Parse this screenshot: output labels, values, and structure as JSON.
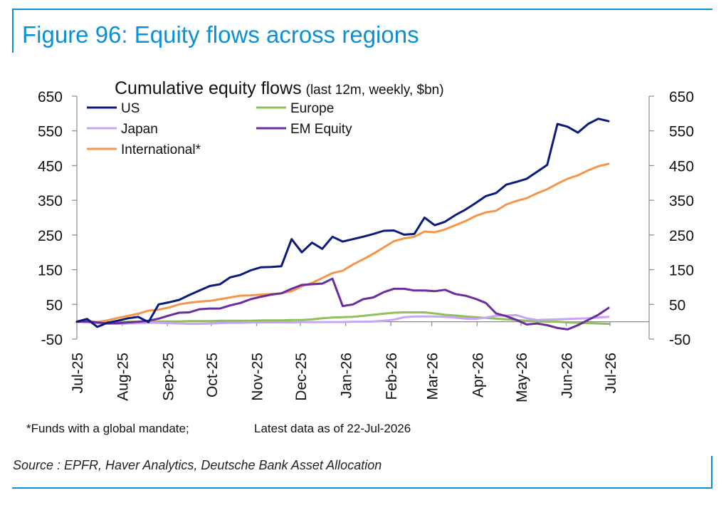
{
  "figure_title": "Figure 96: Equity flows across regions",
  "source": "Source : EPFR, Haver Analytics, Deutsche Bank Asset Allocation",
  "footnote": "*Funds with a global mandate;",
  "latest_note": "Latest data as of 22-Jul-2026",
  "colors": {
    "frame": "#0b8fd6",
    "US": "#0a1a7d",
    "Europe": "#8fc15a",
    "Japan": "#c9a3f5",
    "EM Equity": "#6a2c9e",
    "International*": "#f5954a"
  },
  "chart_data": {
    "type": "line",
    "title": "Cumulative equity flows",
    "subtitle": "(last 12m, weekly, $bn)",
    "ylim": [
      -50,
      650
    ],
    "yticks": [
      650,
      550,
      450,
      350,
      250,
      150,
      50,
      -50
    ],
    "xlim": [
      0,
      52
    ],
    "x_tick_labels": [
      "Jul-25",
      "Aug-25",
      "Sep-25",
      "Oct-25",
      "Nov-25",
      "Dec-25",
      "Jan-26",
      "Feb-26",
      "Mar-26",
      "Apr-26",
      "May-26",
      "Jun-26",
      "Jul-26"
    ],
    "x_tick_weeks": [
      0,
      4.43,
      8.86,
      13.14,
      17.57,
      21.86,
      26.29,
      30.71,
      34.71,
      39.14,
      43.43,
      47.86,
      52.14
    ],
    "legend_placement": "top-left",
    "grid": false,
    "dual_y_axis": true,
    "series": [
      {
        "name": "US",
        "values": [
          0,
          8,
          -15,
          -3,
          3,
          10,
          14,
          -1,
          50,
          56,
          63,
          77,
          90,
          103,
          108,
          128,
          135,
          148,
          157,
          158,
          160,
          238,
          200,
          228,
          210,
          245,
          231,
          238,
          245,
          253,
          262,
          263,
          251,
          253,
          300,
          278,
          288,
          307,
          323,
          342,
          362,
          371,
          395,
          403,
          412,
          432,
          452,
          570,
          562,
          545,
          570,
          585,
          578
        ]
      },
      {
        "name": "Europe",
        "values": [
          0,
          -1,
          -3,
          -2,
          -1,
          0,
          0,
          0,
          1,
          1,
          1,
          2,
          2,
          2,
          3,
          3,
          3,
          3,
          4,
          4,
          4,
          5,
          5,
          7,
          10,
          12,
          13,
          14,
          17,
          20,
          23,
          26,
          27,
          27,
          27,
          24,
          20,
          18,
          15,
          13,
          11,
          9,
          7,
          5,
          3,
          1,
          0,
          0,
          -2,
          -3,
          -4,
          -5,
          -6
        ]
      },
      {
        "name": "Japan",
        "values": [
          0,
          -2,
          -4,
          -5,
          -6,
          -5,
          -4,
          -3,
          -3,
          -4,
          -5,
          -6,
          -6,
          -5,
          -4,
          -3,
          -3,
          -2,
          -2,
          -2,
          -2,
          -2,
          -1,
          -1,
          -1,
          -1,
          -1,
          0,
          0,
          1,
          3,
          6,
          13,
          15,
          15,
          15,
          14,
          12,
          9,
          8,
          12,
          17,
          18,
          19,
          10,
          5,
          6,
          7,
          8,
          9,
          10,
          12,
          14
        ]
      },
      {
        "name": "EM Equity",
        "values": [
          0,
          1,
          -2,
          -5,
          -4,
          -2,
          0,
          3,
          9,
          18,
          26,
          27,
          36,
          38,
          38,
          47,
          54,
          65,
          72,
          78,
          82,
          95,
          106,
          108,
          110,
          124,
          45,
          50,
          65,
          70,
          85,
          95,
          95,
          90,
          90,
          88,
          92,
          80,
          75,
          66,
          54,
          24,
          16,
          5,
          -8,
          -5,
          -10,
          -18,
          -22,
          -10,
          5,
          20,
          40
        ]
      },
      {
        "name": "International*",
        "values": [
          0,
          2,
          -1,
          4,
          11,
          17,
          23,
          32,
          35,
          41,
          50,
          55,
          58,
          60,
          65,
          70,
          75,
          76,
          78,
          80,
          82,
          88,
          102,
          112,
          126,
          140,
          147,
          165,
          180,
          196,
          214,
          232,
          240,
          245,
          260,
          258,
          266,
          278,
          290,
          305,
          315,
          320,
          338,
          348,
          356,
          370,
          382,
          398,
          412,
          422,
          436,
          448,
          455
        ]
      }
    ]
  }
}
